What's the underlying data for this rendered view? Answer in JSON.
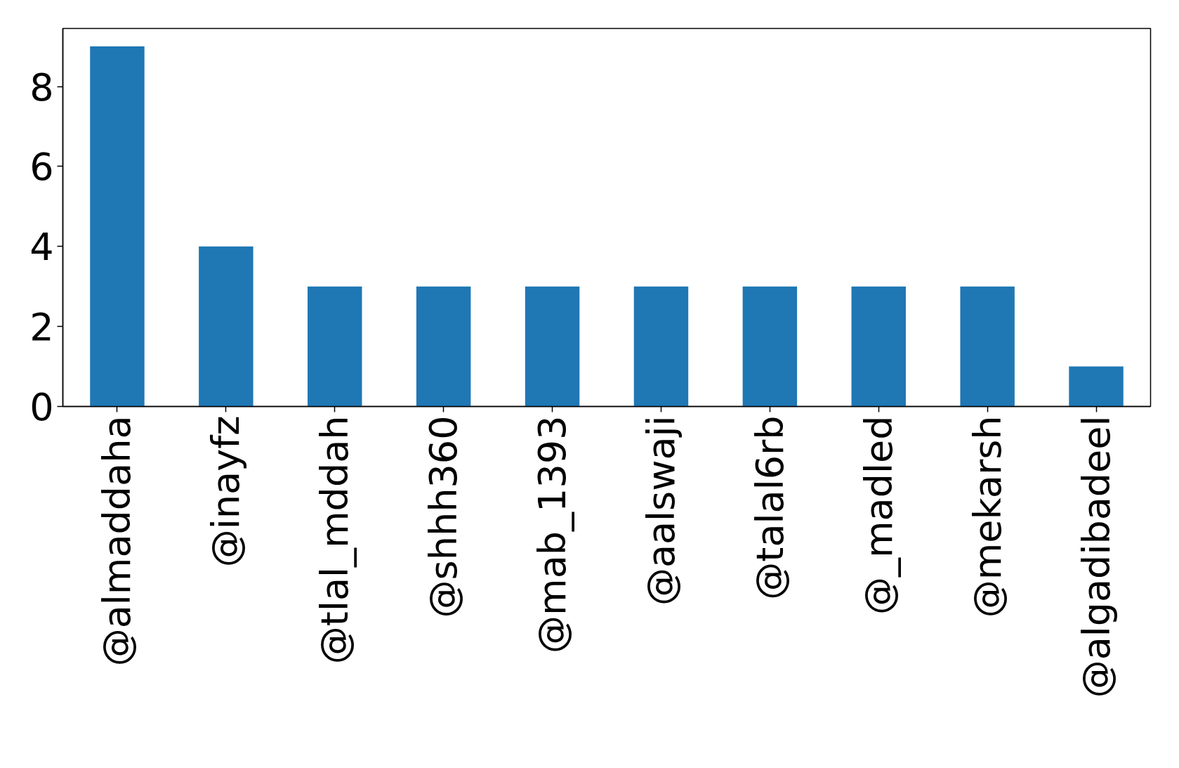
{
  "chart_data": {
    "type": "bar",
    "categories": [
      "@almaddaha",
      "@inayfz",
      "@tlal_mddah",
      "@shhh360",
      "@mab_1393",
      "@aalswaji",
      "@talal6rb",
      "@_madled",
      "@mekarsh",
      "@algadibadeel"
    ],
    "values": [
      9,
      4,
      3,
      3,
      3,
      3,
      3,
      3,
      3,
      1
    ],
    "color": "#1f77b4",
    "ylim": [
      0,
      9.45
    ],
    "yticks": [
      0,
      2,
      4,
      6,
      8
    ],
    "grid": false
  }
}
